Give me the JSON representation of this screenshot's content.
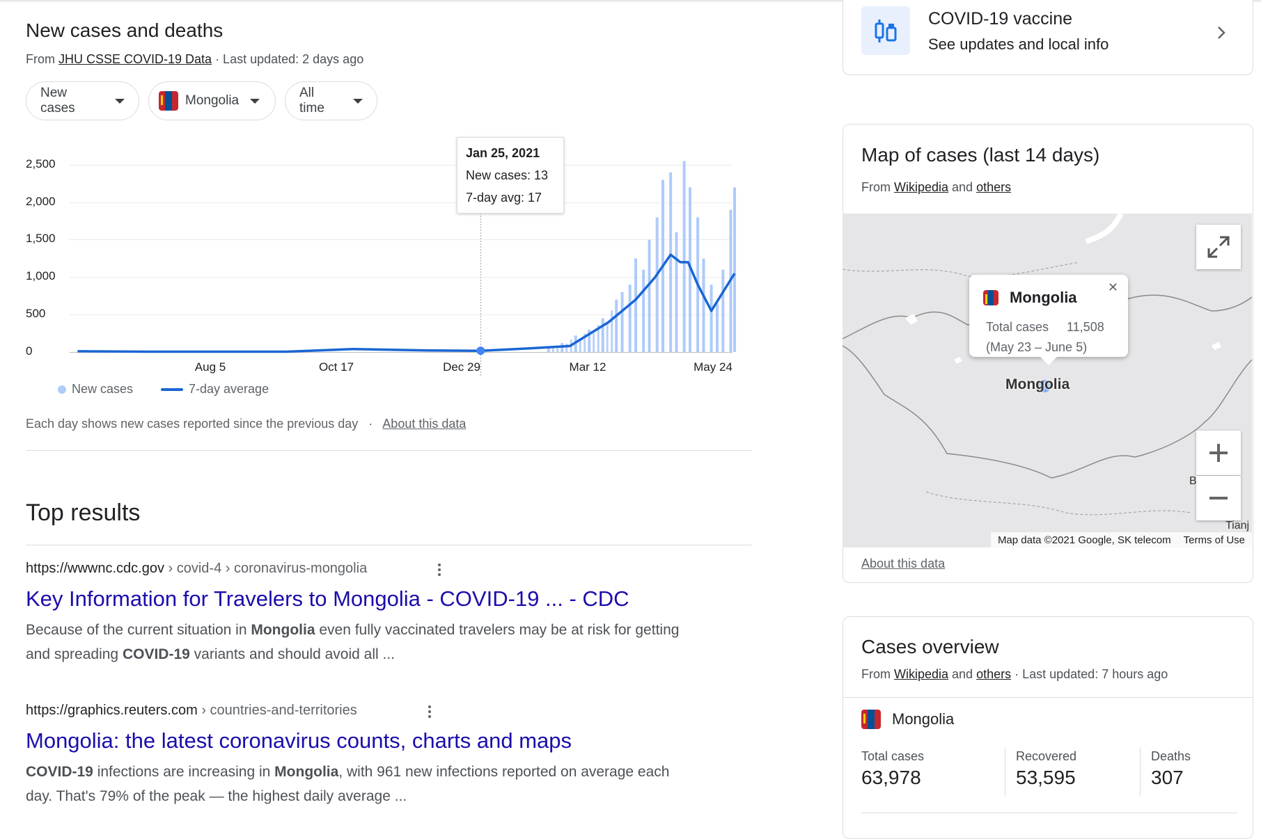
{
  "chart_card": {
    "title": "New cases and deaths",
    "source_prefix": "From ",
    "source_link": "JHU CSSE COVID-19 Data",
    "source_suffix": " · Last updated: 2 days ago",
    "filters": [
      "New cases",
      "Mongolia",
      "All time"
    ],
    "tooltip": {
      "date": "Jan 25, 2021",
      "line1": "New cases: 13",
      "line2": "7-day avg: 17"
    },
    "legend": {
      "bars": "New cases",
      "line": "7-day average"
    },
    "footnote": "Each day shows new cases reported since the previous day",
    "footnote_sep": "·",
    "about_link": "About this data",
    "colors": {
      "bar": "#aecbfa",
      "line": "#1a66d2",
      "dot": "#4285f4"
    }
  },
  "chart_data": {
    "type": "bar",
    "title": "",
    "xlabel": "",
    "ylabel": "",
    "yticks": [
      "2,500",
      "2,000",
      "1,500",
      "1,000",
      "500",
      "0"
    ],
    "ylim": [
      0,
      2500
    ],
    "xticks": [
      "Aug 5",
      "Oct 17",
      "Dec 29",
      "Mar 12",
      "May 24"
    ],
    "series": [
      {
        "name": "New cases",
        "type": "bar",
        "x": [
          "Mar 1",
          "Mar 8",
          "Mar 15",
          "Mar 22",
          "Mar 29",
          "Apr 5",
          "Apr 8",
          "Apr 12",
          "Apr 15",
          "Apr 19",
          "Apr 22",
          "Apr 26",
          "Apr 29",
          "May 3",
          "May 6",
          "May 10",
          "May 13",
          "May 17",
          "May 20",
          "May 24",
          "May 27",
          "May 30",
          "Jun 3",
          "Jun 5"
        ],
        "values": [
          50,
          120,
          220,
          300,
          450,
          700,
          800,
          900,
          1250,
          1100,
          1500,
          1800,
          2300,
          2400,
          1600,
          2550,
          2200,
          1800,
          1250,
          900,
          650,
          1100,
          1900,
          2200
        ]
      },
      {
        "name": "7-day average",
        "type": "line",
        "x": [
          "Jul 1",
          "Aug 5",
          "Sep 10",
          "Oct 17",
          "Nov 20",
          "Dec 29",
          "Jan 25",
          "Feb 20",
          "Mar 12",
          "Apr 1",
          "Apr 15",
          "Apr 25",
          "May 3",
          "May 8",
          "May 12",
          "May 17",
          "May 24",
          "May 30",
          "Jun 5"
        ],
        "values": [
          10,
          5,
          5,
          5,
          40,
          20,
          17,
          50,
          80,
          400,
          700,
          1000,
          1300,
          1200,
          1200,
          900,
          550,
          800,
          1050
        ]
      }
    ],
    "grid": true,
    "legend_position": "bottom-left"
  },
  "results": {
    "heading": "Top results",
    "items": [
      {
        "domain": "https://wwwnc.cdc.gov",
        "path": " › covid-4 › coronavirus-mongolia",
        "title": "Key Information for Travelers to Mongolia - COVID-19 ... - CDC",
        "s1": "Because of the current situation in ",
        "b1": "Mongolia",
        "s2": " even fully vaccinated travelers may be at risk for getting and spreading ",
        "b2": "COVID-19",
        "s3": " variants and should avoid all ..."
      },
      {
        "domain": "https://graphics.reuters.com",
        "path": " › countries-and-territories",
        "title": "Mongolia: the latest coronavirus counts, charts and maps",
        "s1": "",
        "b1": "COVID-19",
        "s2": " infections are increasing in ",
        "b2": "Mongolia",
        "s3": ", with 961 new infections reported on average each day. That's 79% of the peak — the highest daily average ..."
      }
    ]
  },
  "vaccine_card": {
    "title": "COVID-19 vaccine",
    "subtitle": "See updates and local info"
  },
  "map_card": {
    "title": "Map of cases (last 14 days)",
    "source_prefix": "From ",
    "source_link1": "Wikipedia",
    "source_mid": " and ",
    "source_link2": "others",
    "popup": {
      "name": "Mongolia",
      "label": "Total cases",
      "value": "11,508",
      "range": "(May 23 – June 5)"
    },
    "map_label": "Mongolia",
    "attribution": "Map data ©2021 Google, SK telecom",
    "terms": "Terms of Use",
    "edge_label_b": "B",
    "edge_label_tianj": "Tianj",
    "about_link": "About this data"
  },
  "overview_card": {
    "title": "Cases overview",
    "source_prefix": "From ",
    "source_link1": "Wikipedia",
    "source_mid": " and ",
    "source_link2": "others",
    "source_suffix": " · Last updated: 7 hours ago",
    "country": "Mongolia",
    "stats": [
      {
        "label": "Total cases",
        "value": "63,978"
      },
      {
        "label": "Recovered",
        "value": "53,595"
      },
      {
        "label": "Deaths",
        "value": "307"
      }
    ]
  }
}
